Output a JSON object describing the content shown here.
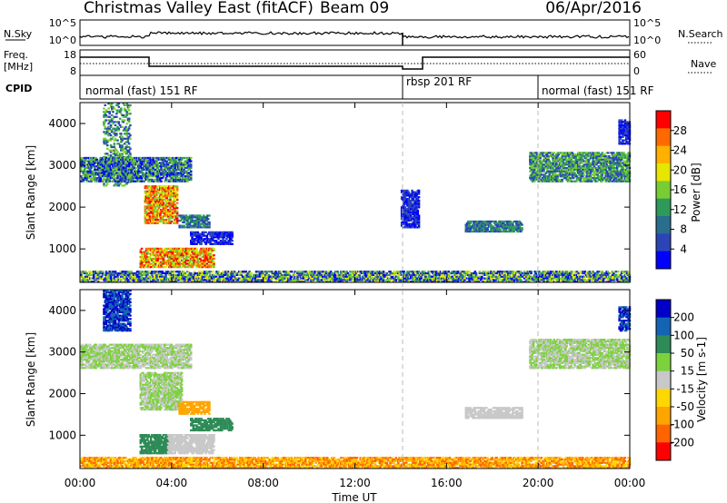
{
  "header": {
    "station": "Christmas Valley East (fitACF)",
    "beam": "Beam 09",
    "date": "06/Apr/2016"
  },
  "panels": {
    "nsky": {
      "label": "N.Sky",
      "ticks": [
        "10^5",
        "10^0"
      ],
      "right_label": "N.Search",
      "right_ticks": [
        "10^5",
        "10^0"
      ]
    },
    "freq": {
      "label": "Freq.",
      "units": "[MHz]",
      "ticks": [
        "18",
        "8"
      ],
      "right_label": "Nave",
      "right_ticks": [
        "60",
        "0"
      ]
    },
    "cpid": {
      "label": "CPID",
      "segments": [
        {
          "name": "normal (fast) 151 RF",
          "start": 0,
          "end": 14
        },
        {
          "name": "rbsp 201 RF",
          "start": 14,
          "end": 20
        },
        {
          "name": "normal (fast) 151 RF",
          "start": 20,
          "end": 24
        }
      ]
    }
  },
  "chart_data": [
    {
      "type": "heatmap",
      "parameter": "power",
      "ylabel": "Slant Range [km]",
      "ylim": [
        200,
        4500
      ],
      "yticks": [
        "4000",
        "3000",
        "2000",
        "1000"
      ],
      "colorbar": {
        "label": "Power [dB]",
        "ticks": [
          "28",
          "24",
          "20",
          "16",
          "12",
          "8",
          "4"
        ],
        "colors": [
          "#ff0000",
          "#ff6a00",
          "#ffb000",
          "#e6e600",
          "#7acc33",
          "#2e9a5a",
          "#2a6e8e",
          "#2b45b8",
          "#0000ff"
        ]
      },
      "regions": [
        {
          "t0": 1.0,
          "t1": 2.2,
          "r0": 2500,
          "r1": 4500,
          "levels": [
            8,
            12,
            16
          ]
        },
        {
          "t0": 0.0,
          "t1": 4.8,
          "r0": 2600,
          "r1": 3200,
          "levels": [
            4,
            8,
            12,
            16
          ]
        },
        {
          "t0": 2.8,
          "t1": 4.2,
          "r0": 1600,
          "r1": 2500,
          "levels": [
            16,
            20,
            24,
            28
          ]
        },
        {
          "t0": 4.3,
          "t1": 5.6,
          "r0": 1500,
          "r1": 1800,
          "levels": [
            8,
            12
          ]
        },
        {
          "t0": 4.8,
          "t1": 6.6,
          "r0": 1100,
          "r1": 1400,
          "levels": [
            4,
            8
          ]
        },
        {
          "t0": 2.6,
          "t1": 5.8,
          "r0": 550,
          "r1": 1000,
          "levels": [
            16,
            20,
            24,
            28
          ]
        },
        {
          "t0": 0.0,
          "t1": 24.0,
          "r0": 200,
          "r1": 450,
          "levels": [
            4,
            8,
            12,
            16,
            20
          ]
        },
        {
          "t0": 14.0,
          "t1": 14.8,
          "r0": 1500,
          "r1": 2400,
          "levels": [
            4,
            8
          ]
        },
        {
          "t0": 16.8,
          "t1": 19.3,
          "r0": 1400,
          "r1": 1650,
          "levels": [
            8,
            12
          ]
        },
        {
          "t0": 19.6,
          "t1": 24.0,
          "r0": 2600,
          "r1": 3300,
          "levels": [
            8,
            12,
            16
          ]
        },
        {
          "t0": 23.5,
          "t1": 24.0,
          "r0": 3500,
          "r1": 4100,
          "levels": [
            4,
            8
          ]
        }
      ]
    },
    {
      "type": "heatmap",
      "parameter": "velocity",
      "ylabel": "Slant Range [km]",
      "xlabel": "Time UT",
      "xticks": [
        "00:00",
        "04:00",
        "08:00",
        "12:00",
        "16:00",
        "20:00",
        "00:00"
      ],
      "ylim": [
        200,
        4500
      ],
      "yticks": [
        "4000",
        "3000",
        "2000",
        "1000"
      ],
      "colorbar": {
        "label": "Velocity [m s-1]",
        "ticks": [
          "200",
          "100",
          "50",
          "15",
          "-15",
          "-50",
          "-100",
          "-200"
        ],
        "colors": [
          "#0000c8",
          "#1464b4",
          "#2e8b57",
          "#7cd23c",
          "#c8c8c8",
          "#ffd700",
          "#ffa500",
          "#ff6400",
          "#ff0000"
        ]
      },
      "regions": [
        {
          "t0": 1.0,
          "t1": 2.2,
          "r0": 3500,
          "r1": 4500,
          "levels": [
            200,
            100
          ]
        },
        {
          "t0": 0.0,
          "t1": 4.8,
          "r0": 2600,
          "r1": 3200,
          "levels": [
            0,
            15
          ]
        },
        {
          "t0": 2.6,
          "t1": 4.4,
          "r0": 1600,
          "r1": 2500,
          "levels": [
            0,
            15
          ]
        },
        {
          "t0": 4.3,
          "t1": 5.6,
          "r0": 1500,
          "r1": 1800,
          "levels": [
            -50
          ]
        },
        {
          "t0": 4.8,
          "t1": 6.6,
          "r0": 1100,
          "r1": 1400,
          "levels": [
            50
          ]
        },
        {
          "t0": 2.6,
          "t1": 3.8,
          "r0": 550,
          "r1": 1000,
          "levels": [
            50
          ]
        },
        {
          "t0": 3.8,
          "t1": 5.8,
          "r0": 550,
          "r1": 1000,
          "levels": [
            0
          ]
        },
        {
          "t0": 0.0,
          "t1": 24.0,
          "r0": 200,
          "r1": 450,
          "levels": [
            -15,
            -50,
            -100
          ]
        },
        {
          "t0": 16.8,
          "t1": 19.3,
          "r0": 1400,
          "r1": 1650,
          "levels": [
            0
          ]
        },
        {
          "t0": 19.6,
          "t1": 24.0,
          "r0": 2600,
          "r1": 3300,
          "levels": [
            0,
            15
          ]
        },
        {
          "t0": 23.5,
          "t1": 24.0,
          "r0": 3500,
          "r1": 4100,
          "levels": [
            200,
            100
          ]
        }
      ]
    }
  ]
}
